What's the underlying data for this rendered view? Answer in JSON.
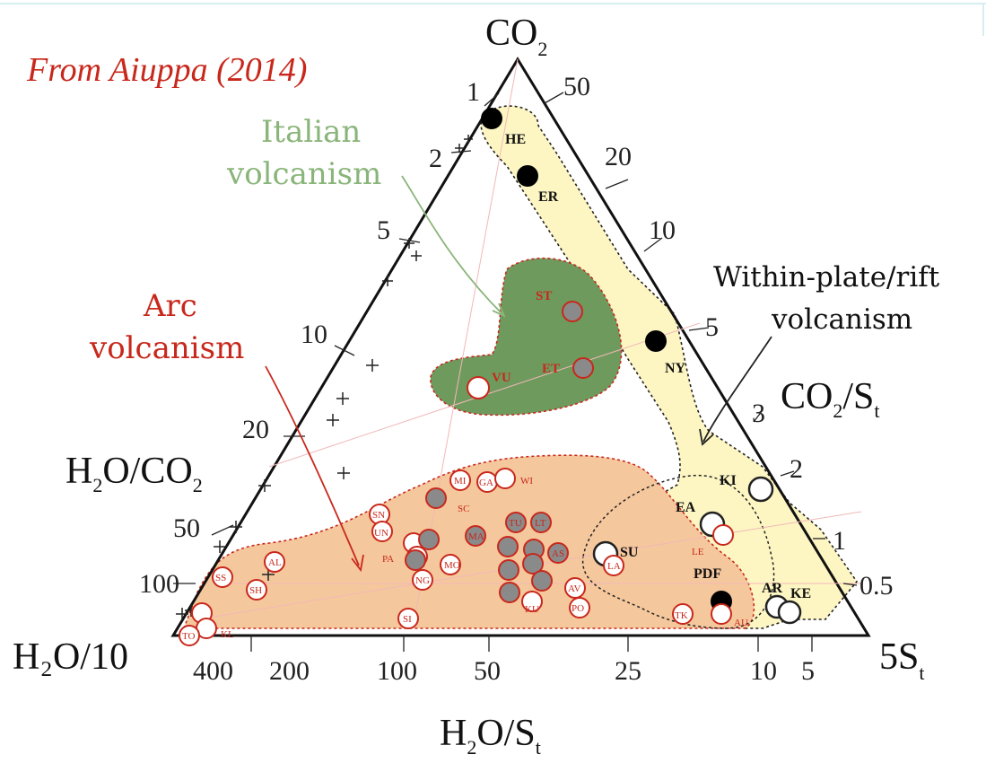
{
  "credit": "From Aiuppa (2014)",
  "apex_top": {
    "main": "CO",
    "sub": "2"
  },
  "apex_left": "H₂O/10",
  "apex_right": {
    "main": "5S",
    "sub": "t"
  },
  "axis_left": {
    "main": "H",
    "sub1": "2",
    "mid": "O/CO",
    "sub2": "2"
  },
  "axis_right": {
    "main": "CO",
    "sub1": "2",
    "mid": "/S",
    "sub2": "t"
  },
  "axis_bottom": {
    "main": "H",
    "sub1": "2",
    "mid": "O/S",
    "sub2": "t"
  },
  "left_ticks": [
    "1",
    "2",
    "5",
    "10",
    "20",
    "50",
    "100"
  ],
  "right_ticks": [
    "50",
    "20",
    "10",
    "5",
    "3",
    "2",
    "1",
    "0.5"
  ],
  "bottom_ticks": [
    "400",
    "200",
    "100",
    "50",
    "25",
    "10",
    "5"
  ],
  "regions": {
    "italian": {
      "line1": "Italian",
      "line2": "volcanism"
    },
    "arc": {
      "line1": "Arc",
      "line2": "volcanism"
    },
    "rift": {
      "line1": "Within-plate/rift",
      "line2": "volcanism"
    }
  },
  "colors": {
    "italian_fill": "#6f9a5e",
    "arc_fill": "#f5c79c",
    "rift_fill": "#fdf6c3",
    "red": "#c8281c",
    "green_text": "#8ab57a",
    "gray_marker": "#8a8a8a"
  },
  "labels": {
    "HE": "HE",
    "ER": "ER",
    "NY": "NY",
    "KI": "KI",
    "EA": "EA",
    "SU": "SU",
    "PDF": "PDF",
    "AR": "AR",
    "KE": "KE",
    "ST": "ST",
    "ET": "ET",
    "VU": "VU",
    "LE": "LE",
    "AU": "AU",
    "TK": "TK",
    "WI": "WI",
    "MI": "MI",
    "GA": "GA",
    "SC": "SC",
    "UN": "UN",
    "PA": "PA",
    "KU": "KU",
    "PO": "PO",
    "AV": "AV",
    "KL": "KL",
    "TO": "TO",
    "SS": "SS",
    "SH": "SH",
    "AL": "AL",
    "SI": "SI",
    "NG": "NG",
    "MO": "MO",
    "SN": "SN",
    "MA": "MA",
    "TU": "TU",
    "LT": "LT",
    "AS": "AS",
    "LA": "LA"
  }
}
